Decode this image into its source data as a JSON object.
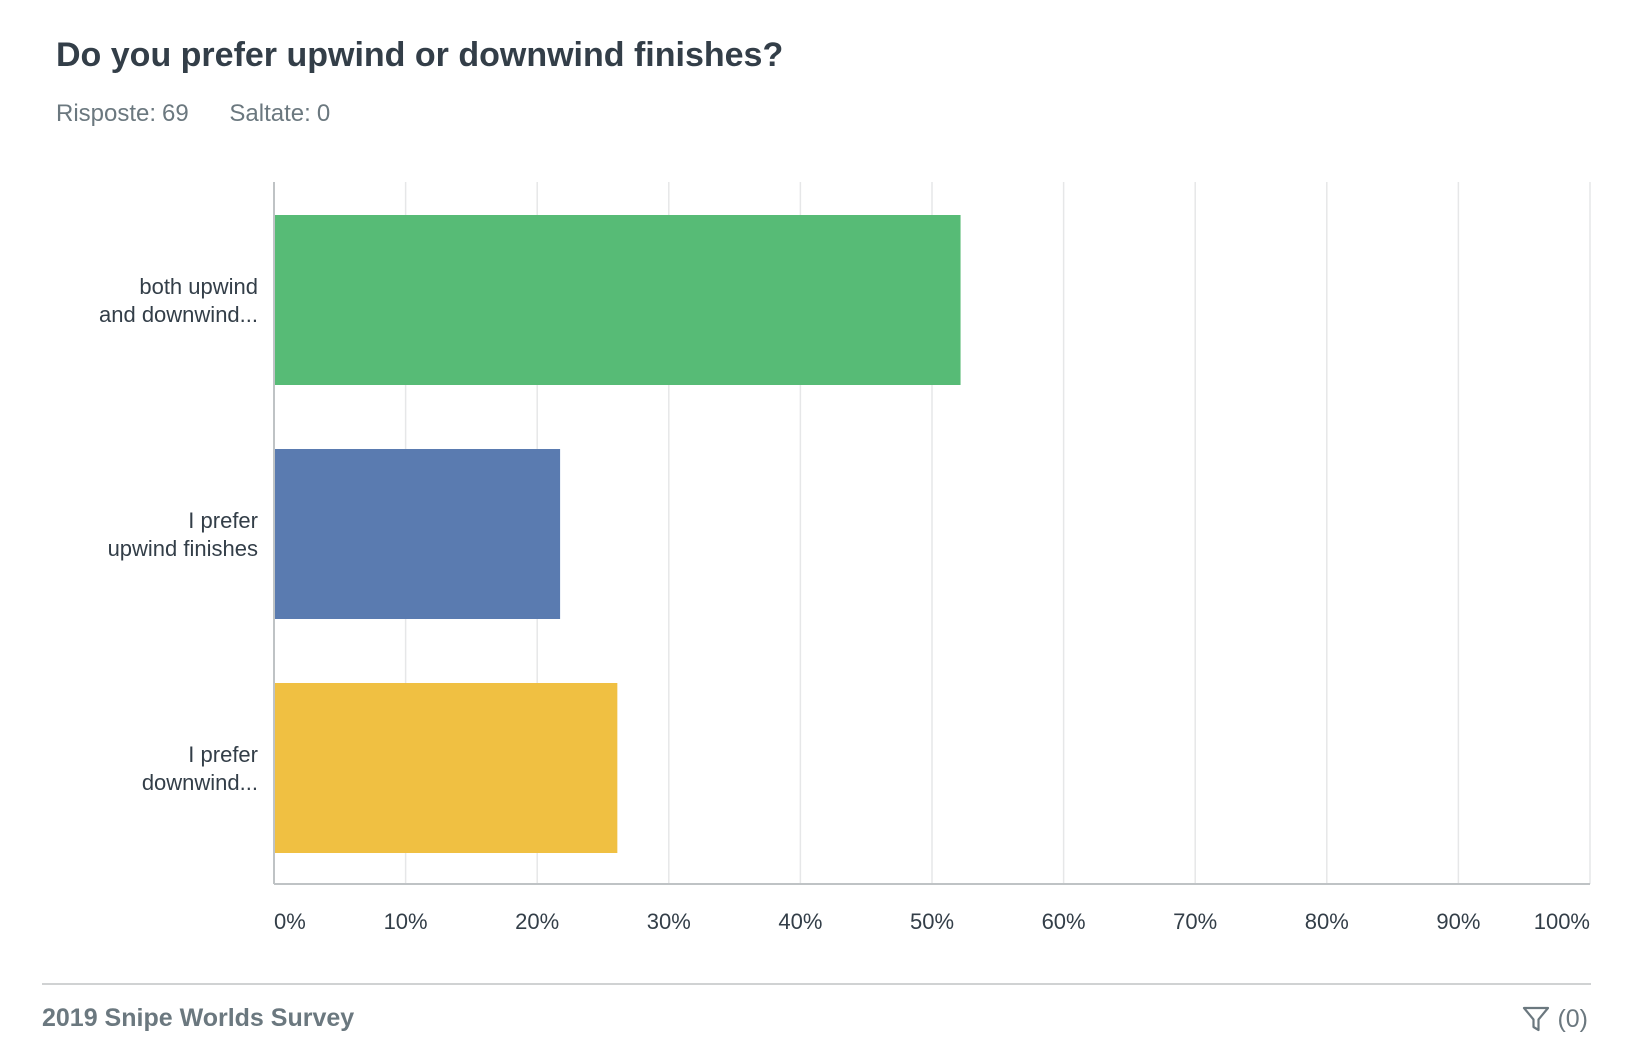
{
  "question": {
    "title": "Do you prefer upwind or downwind finishes?",
    "answered_label": "Risposte:",
    "answered_count": "69",
    "skipped_label": "Saltate:",
    "skipped_count": "0"
  },
  "chart_data": {
    "type": "bar",
    "orientation": "horizontal",
    "categories": [
      [
        "both upwind",
        "and downwind..."
      ],
      [
        "I prefer",
        "upwind finishes"
      ],
      [
        "I prefer",
        "downwind..."
      ]
    ],
    "values": [
      52.17,
      21.74,
      26.09
    ],
    "colors": [
      "#57bb76",
      "#5a7bb0",
      "#f0c042"
    ],
    "xlim": [
      0,
      100
    ],
    "x_ticks": [
      "0%",
      "10%",
      "20%",
      "30%",
      "40%",
      "50%",
      "60%",
      "70%",
      "80%",
      "90%",
      "100%"
    ],
    "grid": true,
    "title": "",
    "xlabel": "",
    "ylabel": ""
  },
  "footer": {
    "survey_title": "2019 Snipe Worlds Survey",
    "filter_icon": "filter-icon",
    "filter_count": "(0)"
  }
}
